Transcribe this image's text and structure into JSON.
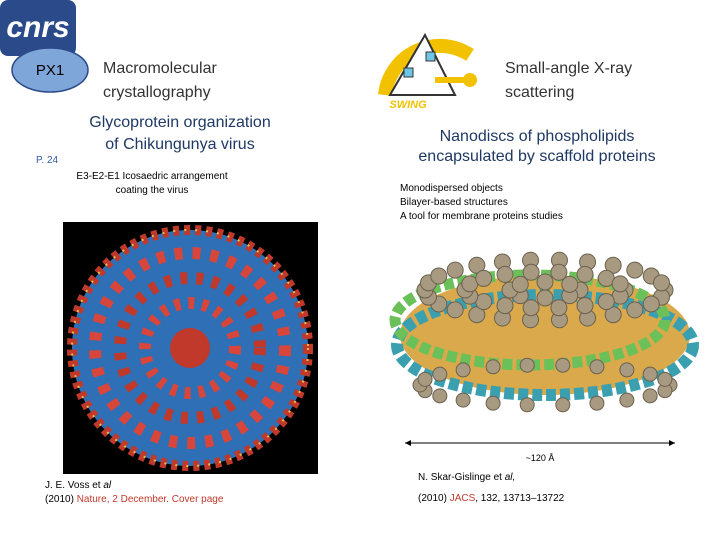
{
  "logo": "cnrs",
  "left": {
    "badge": "PX1",
    "heading": [
      "Macromolecular",
      "crystallography"
    ],
    "title": [
      "Glycoprotein organization",
      "of Chikungunya virus"
    ],
    "page_ref": "P. 24",
    "caption": [
      "E3-E2-E1 Icosaedric arrangement",
      "coating the virus"
    ],
    "reference": {
      "authors": "J. E. Voss et ",
      "authors_italic": "al",
      "year": "(2010) ",
      "journal": "Nature, 2 December. Cover page"
    }
  },
  "right": {
    "logo_label": "SWING",
    "heading": [
      "Small-angle X-ray",
      "scattering"
    ],
    "title": [
      "Nanodiscs of phospholipids",
      "encapsulated by scaffold proteins"
    ],
    "bullets": [
      "Monodispersed objects",
      "Bilayer-based structures",
      "A tool for membrane proteins studies"
    ],
    "scale_label": "~120 Å",
    "reference": {
      "authors": "N. Skar-Gislinge et ",
      "authors_italic": "al,",
      "year": "(2010) ",
      "journal": "JACS",
      "details": ", 132, 13713–13722"
    }
  }
}
